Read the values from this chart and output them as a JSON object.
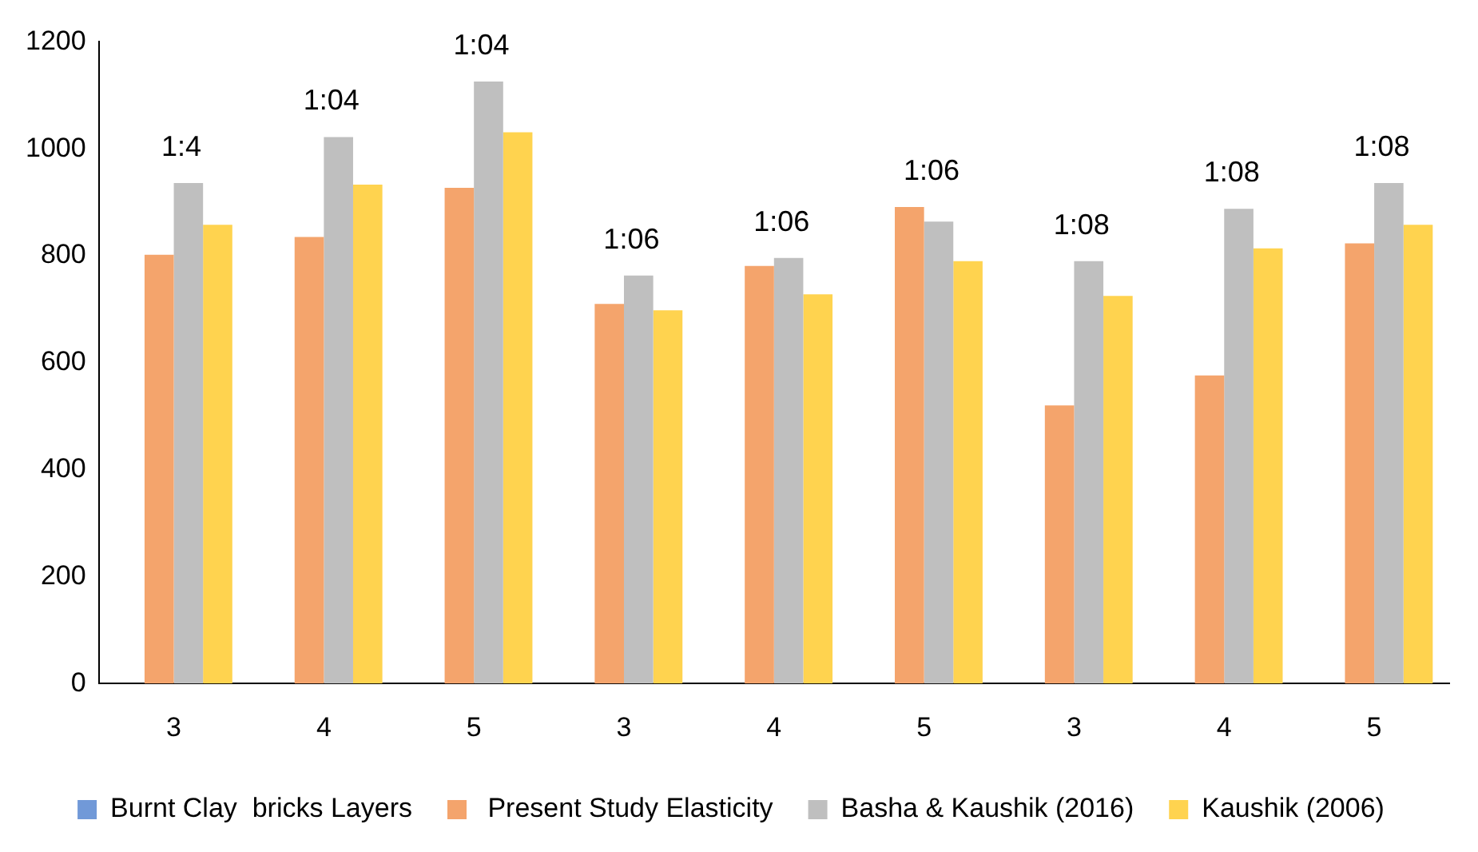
{
  "chart_data": {
    "type": "bar",
    "categories": [
      "3",
      "4",
      "5",
      "3",
      "4",
      "5",
      "3",
      "4",
      "5"
    ],
    "series": [
      {
        "name": "Burnt Clay  bricks Layers",
        "color": "#7199d8",
        "values": [
          null,
          null,
          null,
          null,
          null,
          null,
          null,
          null,
          null
        ]
      },
      {
        "name": " Present Study Elasticity",
        "color": "#f4a46c",
        "values": [
          802,
          835,
          927,
          710,
          781,
          891,
          520,
          576,
          823
        ]
      },
      {
        "name": "Basha & Kaushik (2016)",
        "color": "#bfbfbf",
        "values": [
          936,
          1022,
          1126,
          763,
          796,
          864,
          790,
          888,
          936
        ]
      },
      {
        "name": "Kaushik (2006)",
        "color": "#ffd34f",
        "values": [
          858,
          933,
          1031,
          698,
          728,
          790,
          725,
          814,
          858
        ]
      }
    ],
    "ylim": [
      0,
      1200
    ],
    "yticks": [
      0,
      200,
      400,
      600,
      800,
      1000,
      1200
    ],
    "grid": false,
    "legend": "bottom",
    "annotations": [
      "1:4",
      "1:04",
      "1:04",
      "1:06",
      "1:06",
      "1:06",
      "1:08",
      "1:08",
      "1:08"
    ]
  }
}
